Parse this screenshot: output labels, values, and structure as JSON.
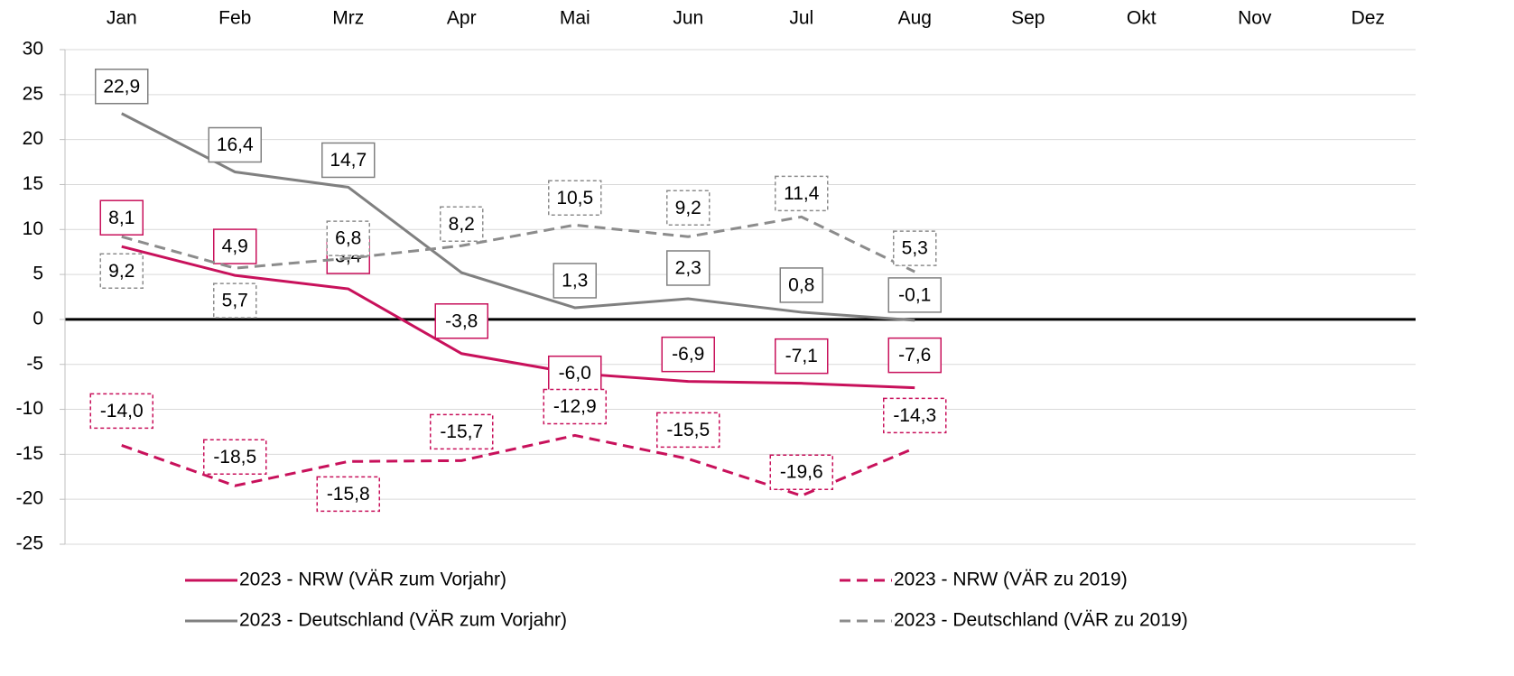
{
  "chart_data": {
    "type": "line",
    "categories": [
      "Jan",
      "Feb",
      "Mrz",
      "Apr",
      "Mai",
      "Jun",
      "Jul",
      "Aug",
      "Sep",
      "Okt",
      "Nov",
      "Dez"
    ],
    "ylim": [
      -25,
      30
    ],
    "yticks": [
      -25,
      -20,
      -15,
      -10,
      -5,
      0,
      5,
      10,
      15,
      20,
      25,
      30
    ],
    "grid": true,
    "legend": "bottom",
    "series": [
      {
        "name": "2023 - NRW (VÄR zum Vorjahr)",
        "color": "#c8115b",
        "style": "solid",
        "values": [
          8.1,
          4.9,
          3.4,
          -3.8,
          -6.0,
          -6.9,
          -7.1,
          -7.6,
          null,
          null,
          null,
          null
        ],
        "value_labels": [
          "8,1",
          "4,9",
          "3,4",
          "-3,8",
          "-6,0",
          "-6,9",
          "-7,1",
          "-7,6",
          null,
          null,
          null,
          null
        ]
      },
      {
        "name": "2023 - NRW (VÄR zu 2019)",
        "color": "#c8115b",
        "style": "dashed",
        "values": [
          -14.0,
          -18.5,
          -15.8,
          -15.7,
          -12.9,
          -15.5,
          -19.6,
          -14.3,
          null,
          null,
          null,
          null
        ],
        "value_labels": [
          "-14,0",
          "-18,5",
          "-15,8",
          "-15,7",
          "-12,9",
          "-15,5",
          "-19,6",
          "-14,3",
          null,
          null,
          null,
          null
        ]
      },
      {
        "name": "2023 - Deutschland (VÄR zum Vorjahr)",
        "color": "#808080",
        "style": "solid",
        "values": [
          22.9,
          16.4,
          14.7,
          5.2,
          1.3,
          2.3,
          0.8,
          -0.1,
          null,
          null,
          null,
          null
        ],
        "value_labels": [
          "22,9",
          "16,4",
          "14,7",
          null,
          "1,3",
          "2,3",
          "0,8",
          "-0,1",
          null,
          null,
          null,
          null
        ]
      },
      {
        "name": "2023 - Deutschland (VÄR zu 2019)",
        "color": "#8c8c8c",
        "style": "dashed",
        "values": [
          9.2,
          5.7,
          6.8,
          8.2,
          10.5,
          9.2,
          11.4,
          5.3,
          null,
          null,
          null,
          null
        ],
        "value_labels": [
          "9,2",
          "5,7",
          "6,8",
          "8,2",
          "10,5",
          "9,2",
          "11,4",
          "5,3",
          null,
          null,
          null,
          null
        ]
      }
    ]
  }
}
